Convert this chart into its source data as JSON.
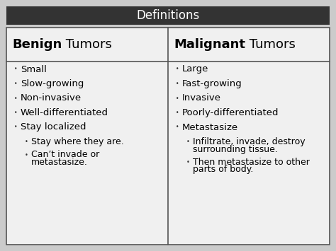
{
  "title": "Definitions",
  "title_bg": "#333333",
  "title_color": "#ffffff",
  "outer_bg": "#cbcbcb",
  "table_bg": "#f0f0f0",
  "header_bg": "#f0f0f0",
  "border_color": "#555555",
  "col1_header_bold": "Benign",
  "col1_header_normal": " Tumors",
  "col2_header_bold": "Malignant",
  "col2_header_normal": " Tumors",
  "header_fontsize": 13,
  "body_fontsize": 9.5,
  "sub_fontsize": 9.0,
  "title_fontsize": 12,
  "col1_items": [
    {
      "text": "Small",
      "level": 0
    },
    {
      "text": "Slow-growing",
      "level": 0
    },
    {
      "text": "Non-invasive",
      "level": 0
    },
    {
      "text": "Well-differentiated",
      "level": 0
    },
    {
      "text": "Stay localized",
      "level": 0
    },
    {
      "text": "Stay where they are.",
      "level": 1
    },
    {
      "text": "Can’t invade or\nmetastasize.",
      "level": 1
    }
  ],
  "col2_items": [
    {
      "text": "Large",
      "level": 0
    },
    {
      "text": "Fast-growing",
      "level": 0
    },
    {
      "text": "Invasive",
      "level": 0
    },
    {
      "text": "Poorly-differentiated",
      "level": 0
    },
    {
      "text": "Metastasize",
      "level": 0
    },
    {
      "text": "Infiltrate, invade, destroy\nsurrounding tissue.",
      "level": 1
    },
    {
      "text": "Then metastasize to other\nparts of body.",
      "level": 1
    }
  ]
}
